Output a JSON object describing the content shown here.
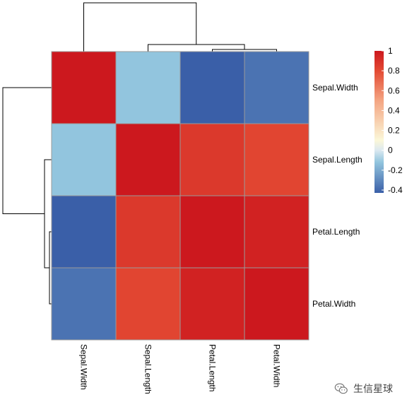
{
  "chart_data": {
    "type": "heatmap",
    "title": "",
    "rows": [
      "Sepal.Width",
      "Sepal.Length",
      "Petal.Length",
      "Petal.Width"
    ],
    "cols": [
      "Sepal.Width",
      "Sepal.Length",
      "Petal.Length",
      "Petal.Width"
    ],
    "values": [
      [
        1.0,
        -0.12,
        -0.43,
        -0.37
      ],
      [
        -0.12,
        1.0,
        0.87,
        0.82
      ],
      [
        -0.43,
        0.87,
        1.0,
        0.96
      ],
      [
        -0.37,
        0.82,
        0.96,
        1.0
      ]
    ],
    "color_scale": {
      "min": -0.43,
      "max": 1.0,
      "stops": [
        {
          "value": -0.43,
          "color": "#3a5fa8"
        },
        {
          "value": -0.12,
          "color": "#92c5de"
        },
        {
          "value": 0.0,
          "color": "#dce9f0"
        },
        {
          "value": 0.1,
          "color": "#fbf7d8"
        },
        {
          "value": 0.5,
          "color": "#f4a582"
        },
        {
          "value": 0.8,
          "color": "#e34a33"
        },
        {
          "value": 1.0,
          "color": "#cc181e"
        }
      ]
    },
    "legend": {
      "position": "right",
      "ticks": [
        1,
        0.8,
        0.6,
        0.4,
        0.2,
        0,
        -0.2,
        -0.4
      ],
      "tick_labels": [
        "1",
        "0.8",
        "0.6",
        "0.4",
        "0.2",
        "0",
        "-0.2",
        "-0.4"
      ]
    },
    "row_dendrogram": true,
    "col_dendrogram": true,
    "cell_border_color": "#9a9a9a",
    "dendrogram_color": "#000000"
  },
  "watermark": {
    "text": "生信星球",
    "icon": "wechat-icon"
  }
}
